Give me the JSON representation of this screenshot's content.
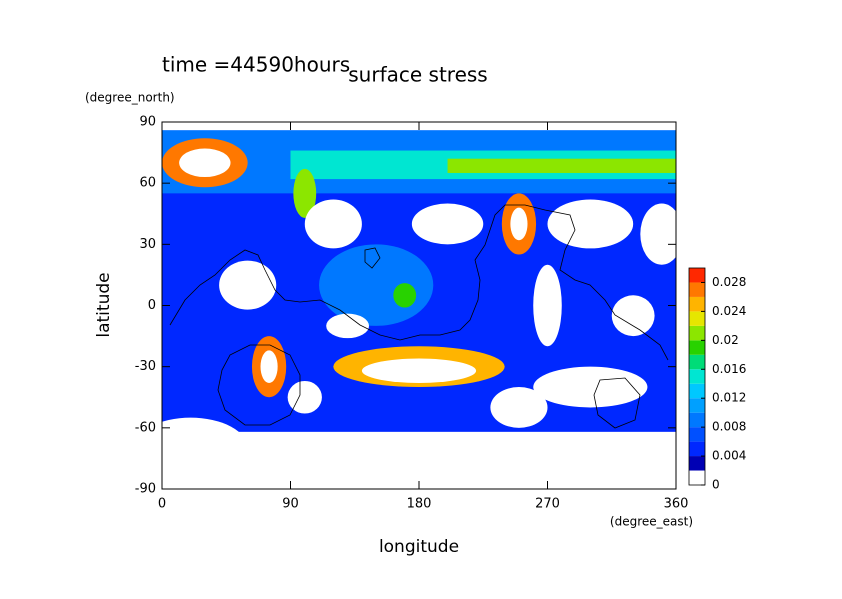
{
  "chart_data": {
    "type": "contour",
    "title": "surface stress",
    "subtitle": "time =44590hours",
    "x_label": "longitude",
    "x_unit": "(degree_east)",
    "y_label": "latitude",
    "y_unit": "(degree_north)",
    "xlim": [
      0,
      360
    ],
    "xticks": [
      0,
      90,
      180,
      270,
      360
    ],
    "ylim": [
      -90,
      90
    ],
    "yticks": [
      -90,
      -60,
      -30,
      0,
      30,
      60,
      90
    ],
    "colorbar": {
      "lim": [
        0,
        0.03
      ],
      "ticks": [
        0,
        0.004,
        0.008,
        0.012,
        0.016,
        0.02,
        0.024,
        0.028
      ],
      "levels": [
        0,
        0.002,
        0.004,
        0.006,
        0.008,
        0.01,
        0.012,
        0.014,
        0.016,
        0.018,
        0.02,
        0.022,
        0.024,
        0.026,
        0.028,
        0.03
      ],
      "colors": [
        "#ffffff",
        "#0000b4",
        "#0028ff",
        "#0050ff",
        "#0078ff",
        "#00a0ff",
        "#00c8ff",
        "#00e6d2",
        "#00dc78",
        "#28d200",
        "#8ce600",
        "#e6e600",
        "#ffb400",
        "#ff7800",
        "#ff2800"
      ]
    }
  }
}
